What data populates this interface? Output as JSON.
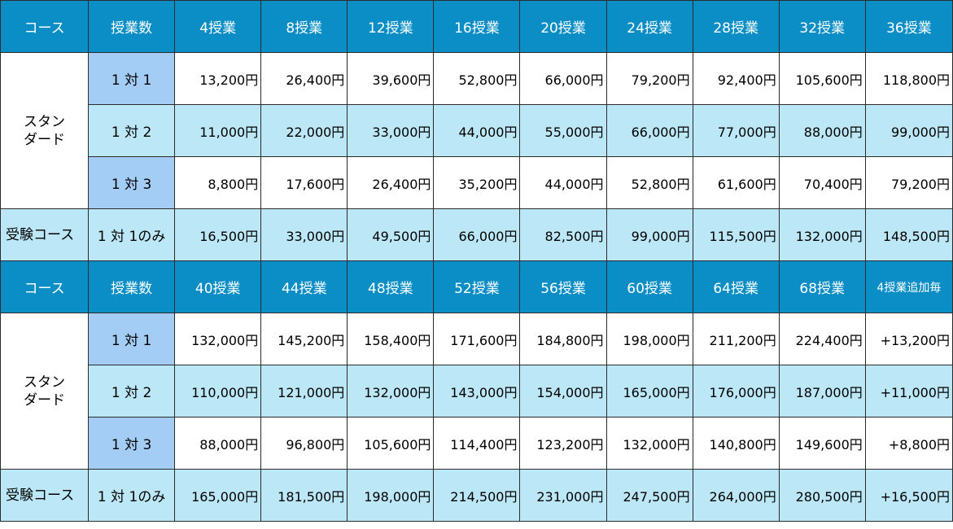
{
  "blocks": [
    {
      "header": [
        "コース",
        "授業数",
        "4授業",
        "8授業",
        "12授業",
        "16授業",
        "20授業",
        "24授業",
        "28授業",
        "32授業",
        "36授業"
      ],
      "standard_label": [
        "スタン",
        "ダード"
      ],
      "rows": [
        {
          "type": "1 対 1",
          "prices": [
            "13,200円",
            "26,400円",
            "39,600円",
            "52,800円",
            "66,000円",
            "79,200円",
            "92,400円",
            "105,600円",
            "118,800円"
          ]
        },
        {
          "type": "1 対 2",
          "prices": [
            "11,000円",
            "22,000円",
            "33,000円",
            "44,000円",
            "55,000円",
            "66,000円",
            "77,000円",
            "88,000円",
            "99,000円"
          ]
        },
        {
          "type": "1 対 3",
          "prices": [
            "8,800円",
            "17,600円",
            "26,400円",
            "35,200円",
            "44,000円",
            "52,800円",
            "61,600円",
            "70,400円",
            "79,200円"
          ]
        }
      ],
      "exam": {
        "course": "受験コース",
        "type": "1 対 1のみ",
        "prices": [
          "16,500円",
          "33,000円",
          "49,500円",
          "66,000円",
          "82,500円",
          "99,000円",
          "115,500円",
          "132,000円",
          "148,500円"
        ]
      }
    },
    {
      "header": [
        "コース",
        "授業数",
        "40授業",
        "44授業",
        "48授業",
        "52授業",
        "56授業",
        "60授業",
        "64授業",
        "68授業",
        "4授業追加毎"
      ],
      "standard_label": [
        "スタン",
        "ダード"
      ],
      "rows": [
        {
          "type": "1 対 1",
          "prices": [
            "132,000円",
            "145,200円",
            "158,400円",
            "171,600円",
            "184,800円",
            "198,000円",
            "211,200円",
            "224,400円",
            "+13,200円"
          ]
        },
        {
          "type": "1 対 2",
          "prices": [
            "110,000円",
            "121,000円",
            "132,000円",
            "143,000円",
            "154,000円",
            "165,000円",
            "176,000円",
            "187,000円",
            "+11,000円"
          ]
        },
        {
          "type": "1 対 3",
          "prices": [
            "88,000円",
            "96,800円",
            "105,600円",
            "114,400円",
            "123,200円",
            "132,000円",
            "140,800円",
            "149,600円",
            "+8,800円"
          ]
        }
      ],
      "exam": {
        "course": "受験コース",
        "type": "1 対 1のみ",
        "prices": [
          "165,000円",
          "181,500円",
          "198,000円",
          "214,500円",
          "231,000円",
          "247,500円",
          "264,000円",
          "280,500円",
          "+16,500円"
        ]
      }
    }
  ],
  "colors": {
    "header_bg": "#0a8ec5",
    "light_row": "#bce7f6",
    "type_highlight": "#a4cdf5",
    "border": "#2b2b2b"
  }
}
